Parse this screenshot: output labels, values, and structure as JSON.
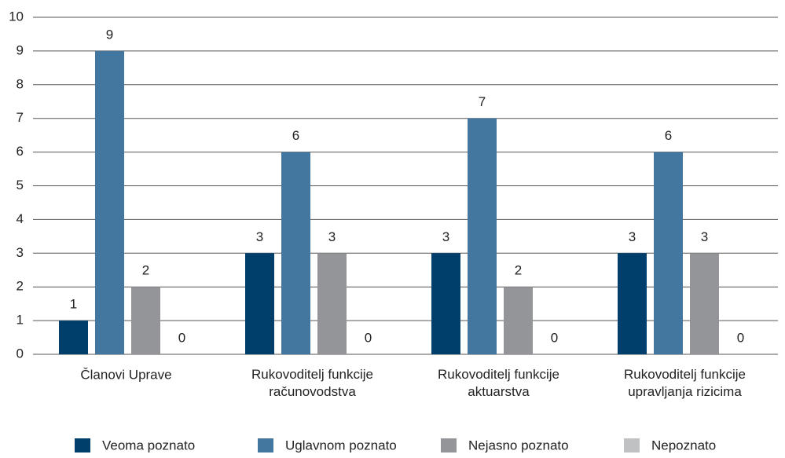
{
  "chart_data": {
    "type": "bar",
    "categories": [
      "Članovi Uprave",
      "Rukovoditelj funkcije\nračunovodstva",
      "Rukovoditelj funkcije\naktuarstva",
      "Rukovoditelj funkcije\nupravljanja rizicima"
    ],
    "series": [
      {
        "name": "Veoma poznato",
        "color": "#003f6b",
        "values": [
          1,
          3,
          3,
          3
        ]
      },
      {
        "name": "Uglavnom poznato",
        "color": "#4477a0",
        "values": [
          9,
          6,
          7,
          6
        ]
      },
      {
        "name": "Nejasno poznato",
        "color": "#939598",
        "values": [
          2,
          3,
          2,
          3
        ]
      },
      {
        "name": "Nepoznato",
        "color": "#c0c1c3",
        "values": [
          0,
          0,
          0,
          0
        ]
      }
    ],
    "ylim": [
      0,
      10
    ],
    "yticks": [
      0,
      1,
      2,
      3,
      4,
      5,
      6,
      7,
      8,
      9,
      10
    ],
    "grid": true,
    "legend": "bottom"
  }
}
